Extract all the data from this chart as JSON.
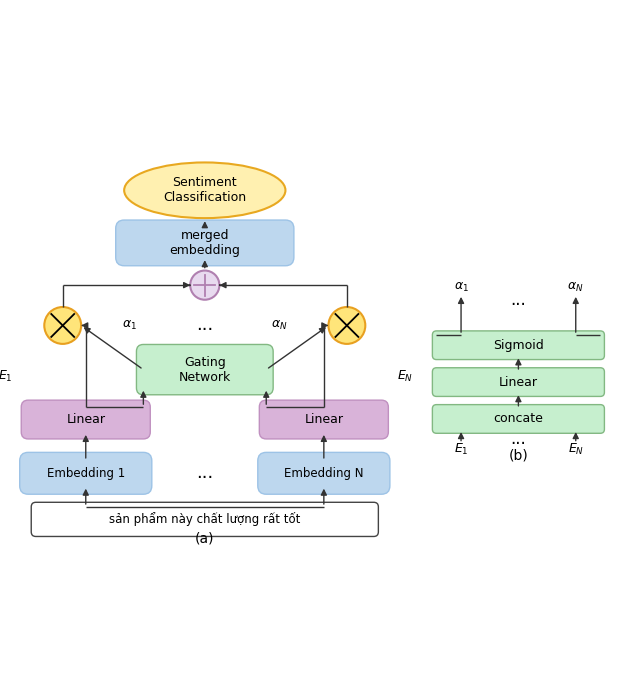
{
  "fig_width": 6.4,
  "fig_height": 6.97,
  "dpi": 100,
  "colors": {
    "blue_box": "#BDD7EE",
    "blue_box_edge": "#9DC3E6",
    "purple_box": "#D9B3D9",
    "purple_box_edge": "#C090C0",
    "green_box": "#C6EFCE",
    "green_box_edge": "#82B882",
    "yellow_circle_fill": "#FFE57A",
    "yellow_circle_edge": "#E8A020",
    "purple_circle_fill": "#E8DAEF",
    "purple_circle_edge": "#B080B0",
    "input_box_fill": "#FFFFFF",
    "input_box_edge": "#444444",
    "sentiment_fill": "#FFF0B0",
    "sentiment_edge": "#E8A820",
    "arrow_color": "#333333"
  },
  "input_text": "sản phẩm này chất lượng rất tốt",
  "label_a": "(a)",
  "label_b": "(b)"
}
